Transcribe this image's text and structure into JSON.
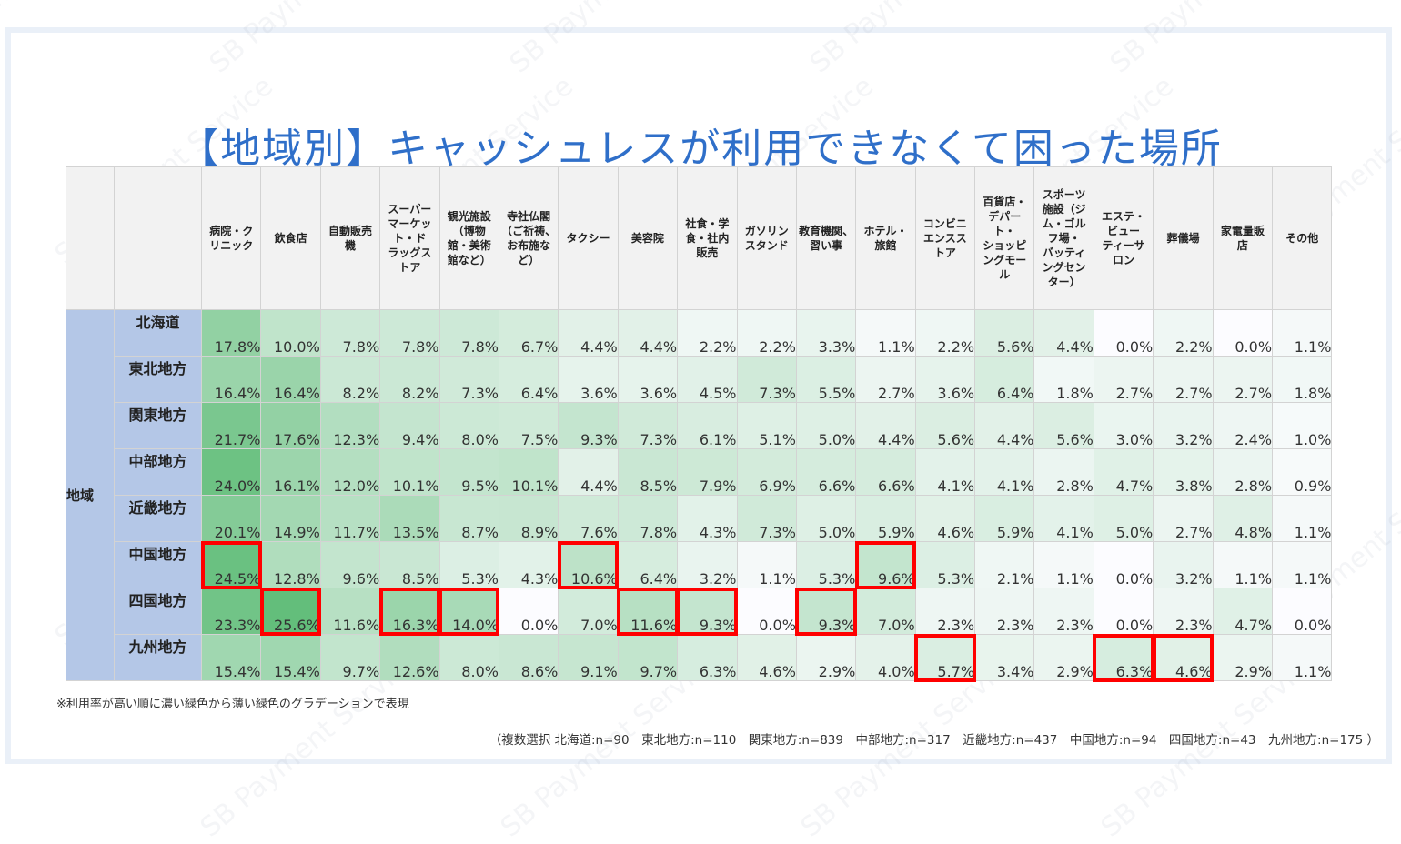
{
  "title": "【地域別】キャッシュレスが利用できなくて困った場所",
  "table": {
    "group_label": "地域",
    "columns": [
      "病院・クリニック",
      "飲食店",
      "自動販売機",
      "スーパーマーケット・ドラッグストア",
      "観光施設（博物館・美術館など）",
      "寺社仏閣（ご祈祷、お布施など）",
      "タクシー",
      "美容院",
      "社食・学食・社内販売",
      "ガソリンスタンド",
      "教育機関、習い事",
      "ホテル・旅館",
      "コンビニエンスストア",
      "百貨店・デパート・ショッピングモール",
      "スポーツ施設（ジム・ゴルフ場・バッティングセンター）",
      "エステ・ビューティーサロン",
      "葬儀場",
      "家電量販店",
      "その他"
    ],
    "column_display": [
      [
        "病院・ク",
        "リニック"
      ],
      [
        "飲食店"
      ],
      [
        "自動販売",
        "機"
      ],
      [
        "スーパー",
        "マーケッ",
        "ト・ド",
        "ラッグス",
        "トア"
      ],
      [
        "観光施設",
        "（博物",
        "館・美術",
        "館など）"
      ],
      [
        "寺社仏閣",
        "（ご祈祷、",
        "お布施な",
        "ど）"
      ],
      [
        "タクシー"
      ],
      [
        "美容院"
      ],
      [
        "社食・学",
        "食・社内",
        "販売"
      ],
      [
        "ガソリン",
        "スタンド"
      ],
      [
        "教育機関、",
        "習い事"
      ],
      [
        "ホテル・",
        "旅館"
      ],
      [
        "コンビニ",
        "エンスス",
        "トア"
      ],
      [
        "百貨店・",
        "デパー",
        "ト・",
        "ショッピ",
        "ングモー",
        "ル"
      ],
      [
        "スポーツ",
        "施設（ジ",
        "ム・ゴル",
        "フ場・",
        "バッティ",
        "ングセン",
        "ター）"
      ],
      [
        "エステ・",
        "ビュー",
        "ティーサ",
        "ロン"
      ],
      [
        "葬儀場"
      ],
      [
        "家電量販",
        "店"
      ],
      [
        "その他"
      ]
    ],
    "rows": [
      {
        "region": "北海道",
        "values": [
          "17.8%",
          "10.0%",
          "7.8%",
          "7.8%",
          "7.8%",
          "6.7%",
          "4.4%",
          "4.4%",
          "2.2%",
          "2.2%",
          "3.3%",
          "1.1%",
          "2.2%",
          "5.6%",
          "4.4%",
          "0.0%",
          "2.2%",
          "0.0%",
          "1.1%"
        ]
      },
      {
        "region": "東北地方",
        "values": [
          "16.4%",
          "16.4%",
          "8.2%",
          "8.2%",
          "7.3%",
          "6.4%",
          "3.6%",
          "3.6%",
          "4.5%",
          "7.3%",
          "5.5%",
          "2.7%",
          "3.6%",
          "6.4%",
          "1.8%",
          "2.7%",
          "2.7%",
          "2.7%",
          "1.8%"
        ]
      },
      {
        "region": "関東地方",
        "values": [
          "21.7%",
          "17.6%",
          "12.3%",
          "9.4%",
          "8.0%",
          "7.5%",
          "9.3%",
          "7.3%",
          "6.1%",
          "5.1%",
          "5.0%",
          "4.4%",
          "5.6%",
          "4.4%",
          "5.6%",
          "3.0%",
          "3.2%",
          "2.4%",
          "1.0%"
        ]
      },
      {
        "region": "中部地方",
        "values": [
          "24.0%",
          "16.1%",
          "12.0%",
          "10.1%",
          "9.5%",
          "10.1%",
          "4.4%",
          "8.5%",
          "7.9%",
          "6.9%",
          "6.6%",
          "6.6%",
          "4.1%",
          "4.1%",
          "2.8%",
          "4.7%",
          "3.8%",
          "2.8%",
          "0.9%"
        ]
      },
      {
        "region": "近畿地方",
        "values": [
          "20.1%",
          "14.9%",
          "11.7%",
          "13.5%",
          "8.7%",
          "8.9%",
          "7.6%",
          "7.8%",
          "4.3%",
          "7.3%",
          "5.0%",
          "5.9%",
          "4.6%",
          "5.9%",
          "4.1%",
          "5.0%",
          "2.7%",
          "4.8%",
          "1.1%"
        ]
      },
      {
        "region": "中国地方",
        "values": [
          "24.5%",
          "12.8%",
          "9.6%",
          "8.5%",
          "5.3%",
          "4.3%",
          "10.6%",
          "6.4%",
          "3.2%",
          "1.1%",
          "5.3%",
          "9.6%",
          "5.3%",
          "2.1%",
          "1.1%",
          "0.0%",
          "3.2%",
          "1.1%",
          "1.1%"
        ]
      },
      {
        "region": "四国地方",
        "values": [
          "23.3%",
          "25.6%",
          "11.6%",
          "16.3%",
          "14.0%",
          "0.0%",
          "7.0%",
          "11.6%",
          "9.3%",
          "0.0%",
          "9.3%",
          "7.0%",
          "2.3%",
          "2.3%",
          "2.3%",
          "0.0%",
          "2.3%",
          "4.7%",
          "0.0%"
        ]
      },
      {
        "region": "九州地方",
        "values": [
          "15.4%",
          "15.4%",
          "9.7%",
          "12.6%",
          "8.0%",
          "8.6%",
          "9.1%",
          "9.7%",
          "6.3%",
          "4.6%",
          "2.9%",
          "4.0%",
          "5.7%",
          "3.4%",
          "2.9%",
          "6.3%",
          "4.6%",
          "2.9%",
          "1.1%"
        ]
      }
    ],
    "highlighted": [
      [
        5,
        0
      ],
      [
        5,
        6
      ],
      [
        5,
        11
      ],
      [
        6,
        1
      ],
      [
        6,
        3
      ],
      [
        6,
        4
      ],
      [
        6,
        7
      ],
      [
        6,
        8
      ],
      [
        6,
        10
      ],
      [
        7,
        12
      ],
      [
        7,
        15
      ],
      [
        7,
        16
      ]
    ]
  },
  "colors": {
    "title": "#2f6fc9",
    "region_bg": "#b4c7e7",
    "header_bg": "#f2f2f2",
    "scale_max": "#63be7b",
    "scale_min": "#fcfcff",
    "highlight_border": "#ff0000"
  },
  "footnote": "※利用率が高い順に濃い緑色から薄い緑色のグラデーションで表現",
  "sample_note": "（複数選択 北海道:n=90　東北地方:n=110　関東地方:n=839　中部地方:n=317　近畿地方:n=437　中国地方:n=94　四国地方:n=43　九州地方:n=175 ）",
  "watermark": "SB Payment Service",
  "chart_data": {
    "type": "heatmap",
    "title": "【地域別】キャッシュレスが利用できなくて困った場所",
    "xlabel": "",
    "ylabel": "地域",
    "x": [
      "病院・クリニック",
      "飲食店",
      "自動販売機",
      "スーパーマーケット・ドラッグストア",
      "観光施設（博物館・美術館など）",
      "寺社仏閣（ご祈祷、お布施など）",
      "タクシー",
      "美容院",
      "社食・学食・社内販売",
      "ガソリンスタンド",
      "教育機関、習い事",
      "ホテル・旅館",
      "コンビニエンスストア",
      "百貨店・デパート・ショッピングモール",
      "スポーツ施設（ジム・ゴルフ場・バッティングセンター）",
      "エステ・ビューティーサロン",
      "葬儀場",
      "家電量販店",
      "その他"
    ],
    "y": [
      "北海道",
      "東北地方",
      "関東地方",
      "中部地方",
      "近畿地方",
      "中国地方",
      "四国地方",
      "九州地方"
    ],
    "unit": "%",
    "values": [
      [
        17.8,
        10.0,
        7.8,
        7.8,
        7.8,
        6.7,
        4.4,
        4.4,
        2.2,
        2.2,
        3.3,
        1.1,
        2.2,
        5.6,
        4.4,
        0.0,
        2.2,
        0.0,
        1.1
      ],
      [
        16.4,
        16.4,
        8.2,
        8.2,
        7.3,
        6.4,
        3.6,
        3.6,
        4.5,
        7.3,
        5.5,
        2.7,
        3.6,
        6.4,
        1.8,
        2.7,
        2.7,
        2.7,
        1.8
      ],
      [
        21.7,
        17.6,
        12.3,
        9.4,
        8.0,
        7.5,
        9.3,
        7.3,
        6.1,
        5.1,
        5.0,
        4.4,
        5.6,
        4.4,
        5.6,
        3.0,
        3.2,
        2.4,
        1.0
      ],
      [
        24.0,
        16.1,
        12.0,
        10.1,
        9.5,
        10.1,
        4.4,
        8.5,
        7.9,
        6.9,
        6.6,
        6.6,
        4.1,
        4.1,
        2.8,
        4.7,
        3.8,
        2.8,
        0.9
      ],
      [
        20.1,
        14.9,
        11.7,
        13.5,
        8.7,
        8.9,
        7.6,
        7.8,
        4.3,
        7.3,
        5.0,
        5.9,
        4.6,
        5.9,
        4.1,
        5.0,
        2.7,
        4.8,
        1.1
      ],
      [
        24.5,
        12.8,
        9.6,
        8.5,
        5.3,
        4.3,
        10.6,
        6.4,
        3.2,
        1.1,
        5.3,
        9.6,
        5.3,
        2.1,
        1.1,
        0.0,
        3.2,
        1.1,
        1.1
      ],
      [
        23.3,
        25.6,
        11.6,
        16.3,
        14.0,
        0.0,
        7.0,
        11.6,
        9.3,
        0.0,
        9.3,
        7.0,
        2.3,
        2.3,
        2.3,
        0.0,
        2.3,
        4.7,
        0.0
      ],
      [
        15.4,
        15.4,
        9.7,
        12.6,
        8.0,
        8.6,
        9.1,
        9.7,
        6.3,
        4.6,
        2.9,
        4.0,
        5.7,
        3.4,
        2.9,
        6.3,
        4.6,
        2.9,
        1.1
      ]
    ],
    "sample_sizes": {
      "北海道": 90,
      "東北地方": 110,
      "関東地方": 839,
      "中部地方": 317,
      "近畿地方": 437,
      "中国地方": 94,
      "四国地方": 43,
      "九州地方": 175
    },
    "color_scale": "green gradient (darker = higher rate)",
    "legend": "※利用率が高い順に濃い緑色から薄い緑色のグラデーションで表現"
  }
}
